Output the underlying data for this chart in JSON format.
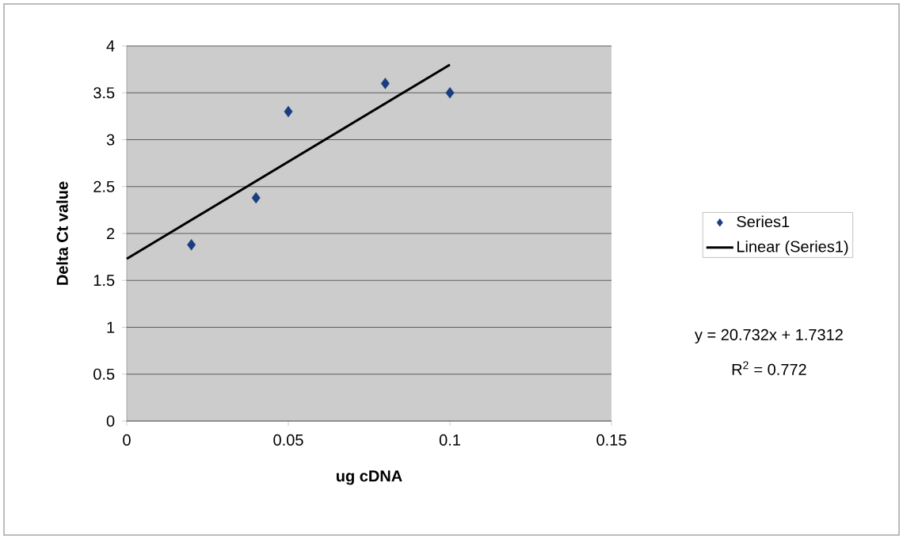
{
  "chart_data": {
    "type": "scatter",
    "xlabel": "ug cDNA",
    "ylabel": "Delta Ct value",
    "series": [
      {
        "name": "Series1",
        "color": "#1a3c80",
        "marker": "diamond",
        "x": [
          0.02,
          0.04,
          0.05,
          0.08,
          0.1
        ],
        "values": [
          1.88,
          2.38,
          3.3,
          3.6,
          3.5
        ]
      },
      {
        "name": "Linear (Series1)",
        "type": "line",
        "color": "#000000",
        "x": [
          0,
          0.1
        ],
        "values": [
          1.73,
          3.8
        ]
      }
    ],
    "xlim": [
      0,
      0.15
    ],
    "xticks": [
      0,
      0.05,
      0.1,
      0.15
    ],
    "ylim": [
      0,
      4
    ],
    "yticks": [
      0,
      0.5,
      1,
      1.5,
      2,
      2.5,
      3,
      3.5,
      4
    ],
    "grid": "y",
    "legend": "right",
    "line_style": "solid",
    "annotations": [
      "y = 20.732x + 1.7312",
      "R$^{2}$ = 0.772"
    ]
  }
}
